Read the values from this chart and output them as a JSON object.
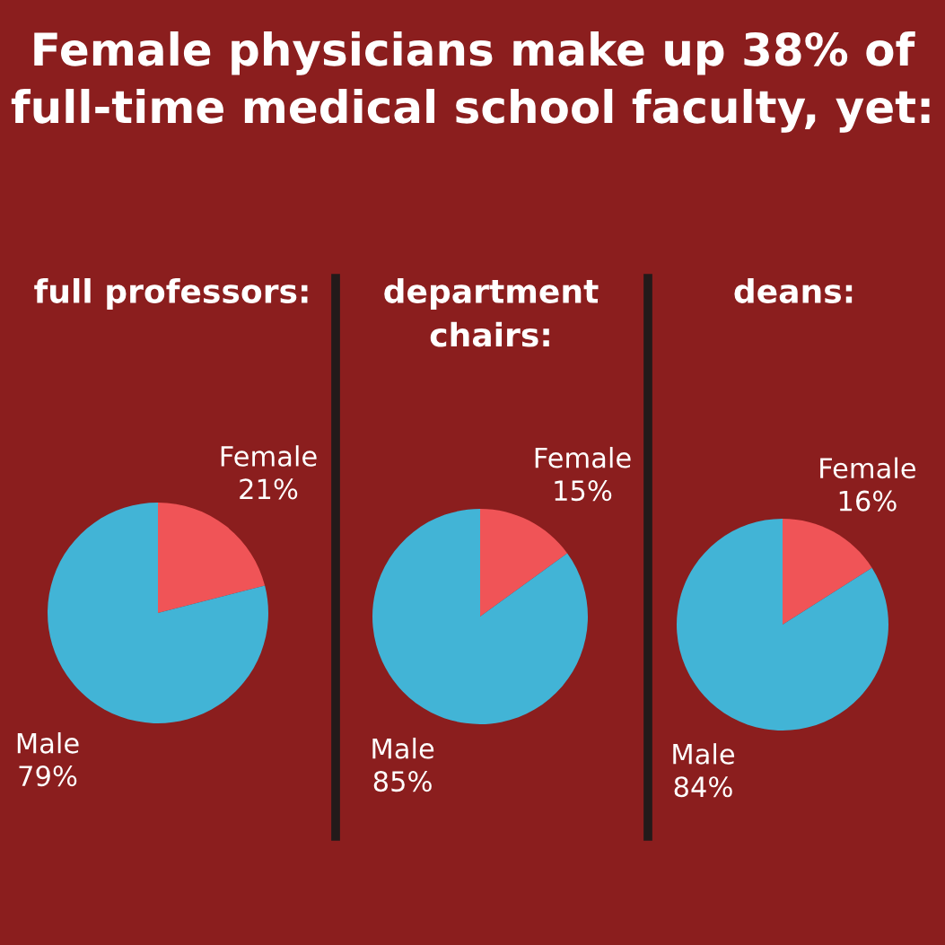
{
  "chart_data": [
    {
      "type": "pie",
      "title": "full professors:",
      "annotations": [
        "Female physicians make up 38% of full-time medical school faculty, yet:"
      ],
      "categories": [
        "Female",
        "Male"
      ],
      "values": [
        21,
        79
      ],
      "value_labels": [
        "21%",
        "79%"
      ],
      "colors": [
        "#f05457",
        "#42b4d6"
      ]
    },
    {
      "type": "pie",
      "title": "department\nchairs:",
      "categories": [
        "Female",
        "Male"
      ],
      "values": [
        15,
        85
      ],
      "value_labels": [
        "15%",
        "85%"
      ],
      "colors": [
        "#f05457",
        "#42b4d6"
      ]
    },
    {
      "type": "pie",
      "title": "deans:",
      "categories": [
        "Female",
        "Male"
      ],
      "values": [
        16,
        84
      ],
      "value_labels": [
        "16%",
        "84%"
      ],
      "colors": [
        "#f05457",
        "#42b4d6"
      ]
    }
  ]
}
